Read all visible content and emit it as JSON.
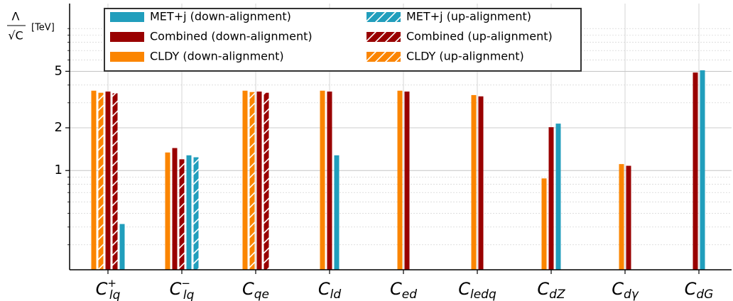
{
  "chart_data": {
    "type": "bar",
    "y_label": {
      "numerator": "Λ",
      "denominator": "√C",
      "unit": "[TeV]"
    },
    "categories": [
      {
        "base": "C",
        "sub": "lq",
        "sup": "+"
      },
      {
        "base": "C",
        "sub": "lq",
        "sup": "−"
      },
      {
        "base": "C",
        "sub": "qe"
      },
      {
        "base": "C",
        "sub": "ld"
      },
      {
        "base": "C",
        "sub": "ed"
      },
      {
        "base": "C",
        "sub": "ledq"
      },
      {
        "base": "C",
        "sub": "dZ"
      },
      {
        "base": "C",
        "sub": "dγ"
      },
      {
        "base": "C",
        "sub": "dG"
      }
    ],
    "series": [
      {
        "name": "MET+j (down-alignment)",
        "color": "#219ebc",
        "hatch": false,
        "values": [
          0.42,
          1.28,
          null,
          1.28,
          null,
          null,
          2.14,
          null,
          5.08
        ]
      },
      {
        "name": "Combined (down-alignment)",
        "color": "#990000",
        "hatch": false,
        "values": [
          3.6,
          1.44,
          3.6,
          3.6,
          3.6,
          3.33,
          2.02,
          1.08,
          4.9
        ]
      },
      {
        "name": "CLDY (down-alignment)",
        "color": "#fb8500",
        "hatch": false,
        "values": [
          3.65,
          1.34,
          3.65,
          3.65,
          3.65,
          3.4,
          0.88,
          1.11,
          null
        ]
      },
      {
        "name": "MET+j (up-alignment)",
        "color": "#219ebc",
        "hatch": true,
        "values": [
          null,
          1.24,
          null,
          null,
          null,
          null,
          null,
          null,
          null
        ]
      },
      {
        "name": "Combined (up-alignment)",
        "color": "#990000",
        "hatch": true,
        "values": [
          3.5,
          1.2,
          3.53,
          null,
          null,
          null,
          null,
          null,
          null
        ]
      },
      {
        "name": "CLDY (up-alignment)",
        "color": "#fb8500",
        "hatch": true,
        "values": [
          3.53,
          null,
          3.57,
          null,
          null,
          null,
          null,
          null,
          null
        ]
      }
    ],
    "log_y": true,
    "ylim": [
      0.2,
      15
    ],
    "yticks": [
      1,
      2,
      5
    ],
    "yminor": [
      0.3,
      0.4,
      0.5,
      0.6,
      0.7,
      0.8,
      0.9,
      3,
      4,
      6,
      7,
      8,
      9,
      10
    ],
    "grid": true,
    "legend_position": "top-left"
  }
}
